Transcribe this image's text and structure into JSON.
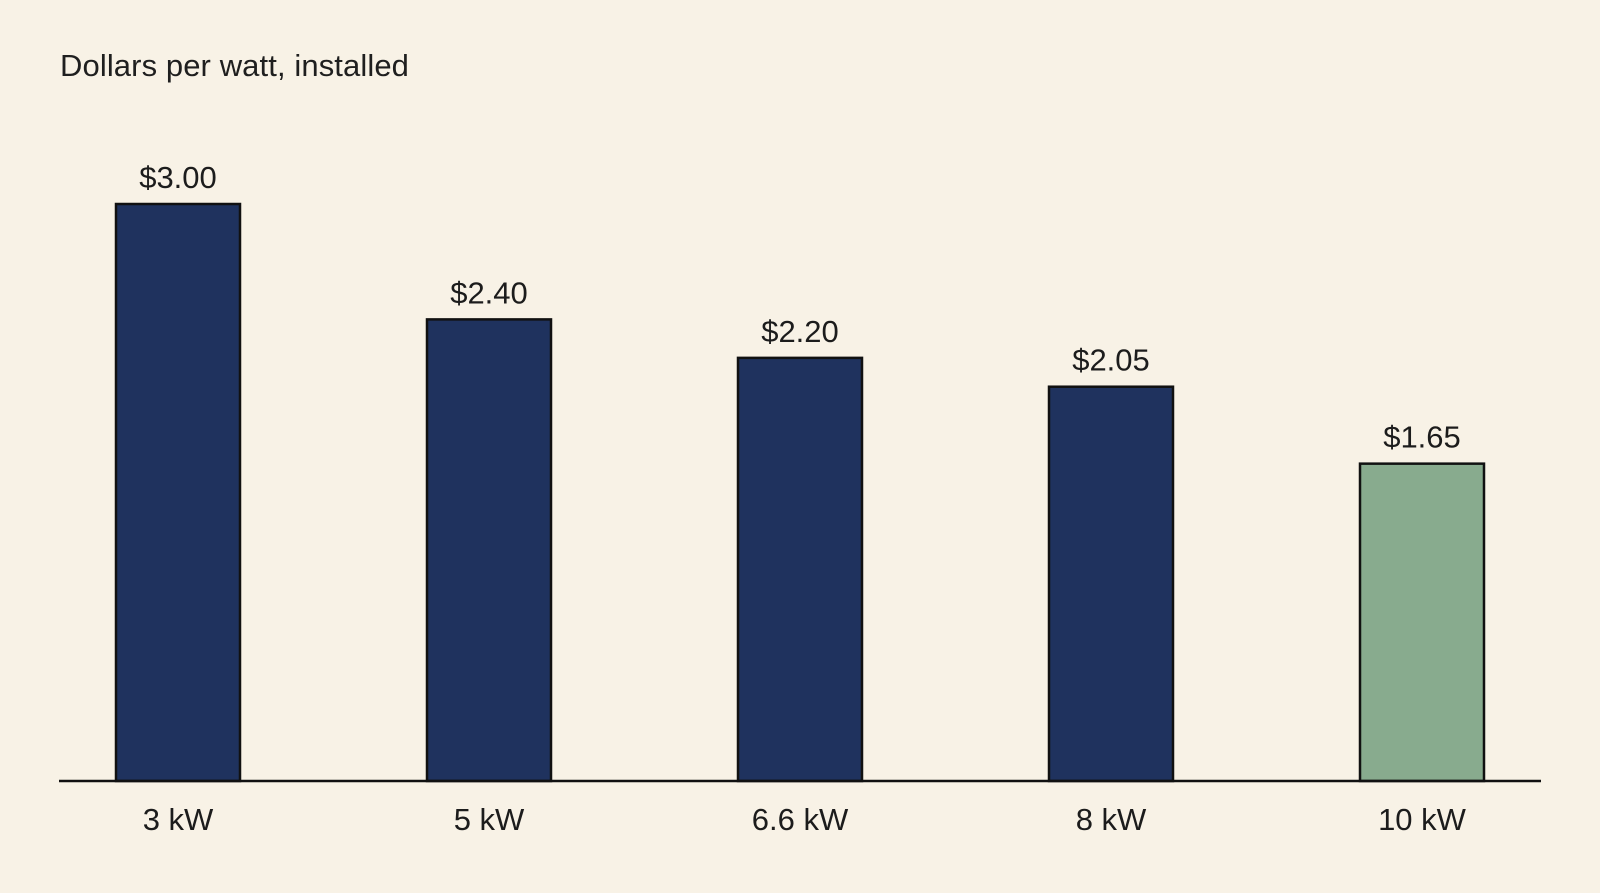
{
  "chart_data": {
    "type": "bar",
    "title": "Dollars per watt, installed",
    "categories": [
      "3 kW",
      "5 kW",
      "6.6 kW",
      "8 kW",
      "10 kW"
    ],
    "values": [
      3.0,
      2.4,
      2.2,
      2.05,
      1.65
    ],
    "value_labels": [
      "$3.00",
      "$2.40",
      "$2.20",
      "$2.05",
      "$1.65"
    ],
    "colors": [
      "#1f325e",
      "#1f325e",
      "#1f325e",
      "#1f325e",
      "#88ab8e"
    ],
    "xlabel": "",
    "ylabel": "",
    "ylim": [
      0,
      3.0
    ],
    "grid": false,
    "legend": "none"
  }
}
